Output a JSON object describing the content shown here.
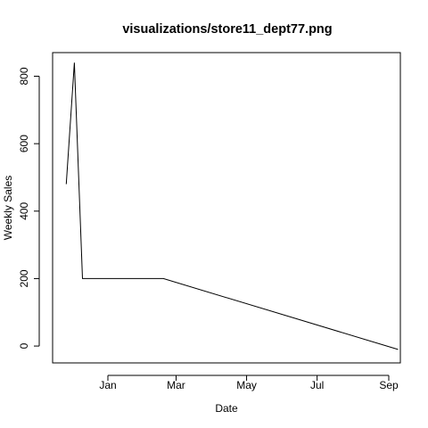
{
  "chart_data": {
    "type": "line",
    "title": "visualizations/store11_dept77.png",
    "xlabel": "Date",
    "ylabel": "Weekly Sales",
    "x_ticks": [
      "Jan",
      "Mar",
      "May",
      "Jul",
      "Sep"
    ],
    "y_ticks": [
      "0",
      "200",
      "400",
      "600",
      "800"
    ],
    "ylim": [
      -50,
      870
    ],
    "grid": false,
    "series": [
      {
        "color": "#000000",
        "points": [
          {
            "x": "2010-11-26",
            "y": 480
          },
          {
            "x": "2010-12-03",
            "y": 840
          },
          {
            "x": "2010-12-10",
            "y": 200
          },
          {
            "x": "2011-02-18",
            "y": 200
          },
          {
            "x": "2011-09-09",
            "y": -10
          }
        ]
      }
    ]
  }
}
